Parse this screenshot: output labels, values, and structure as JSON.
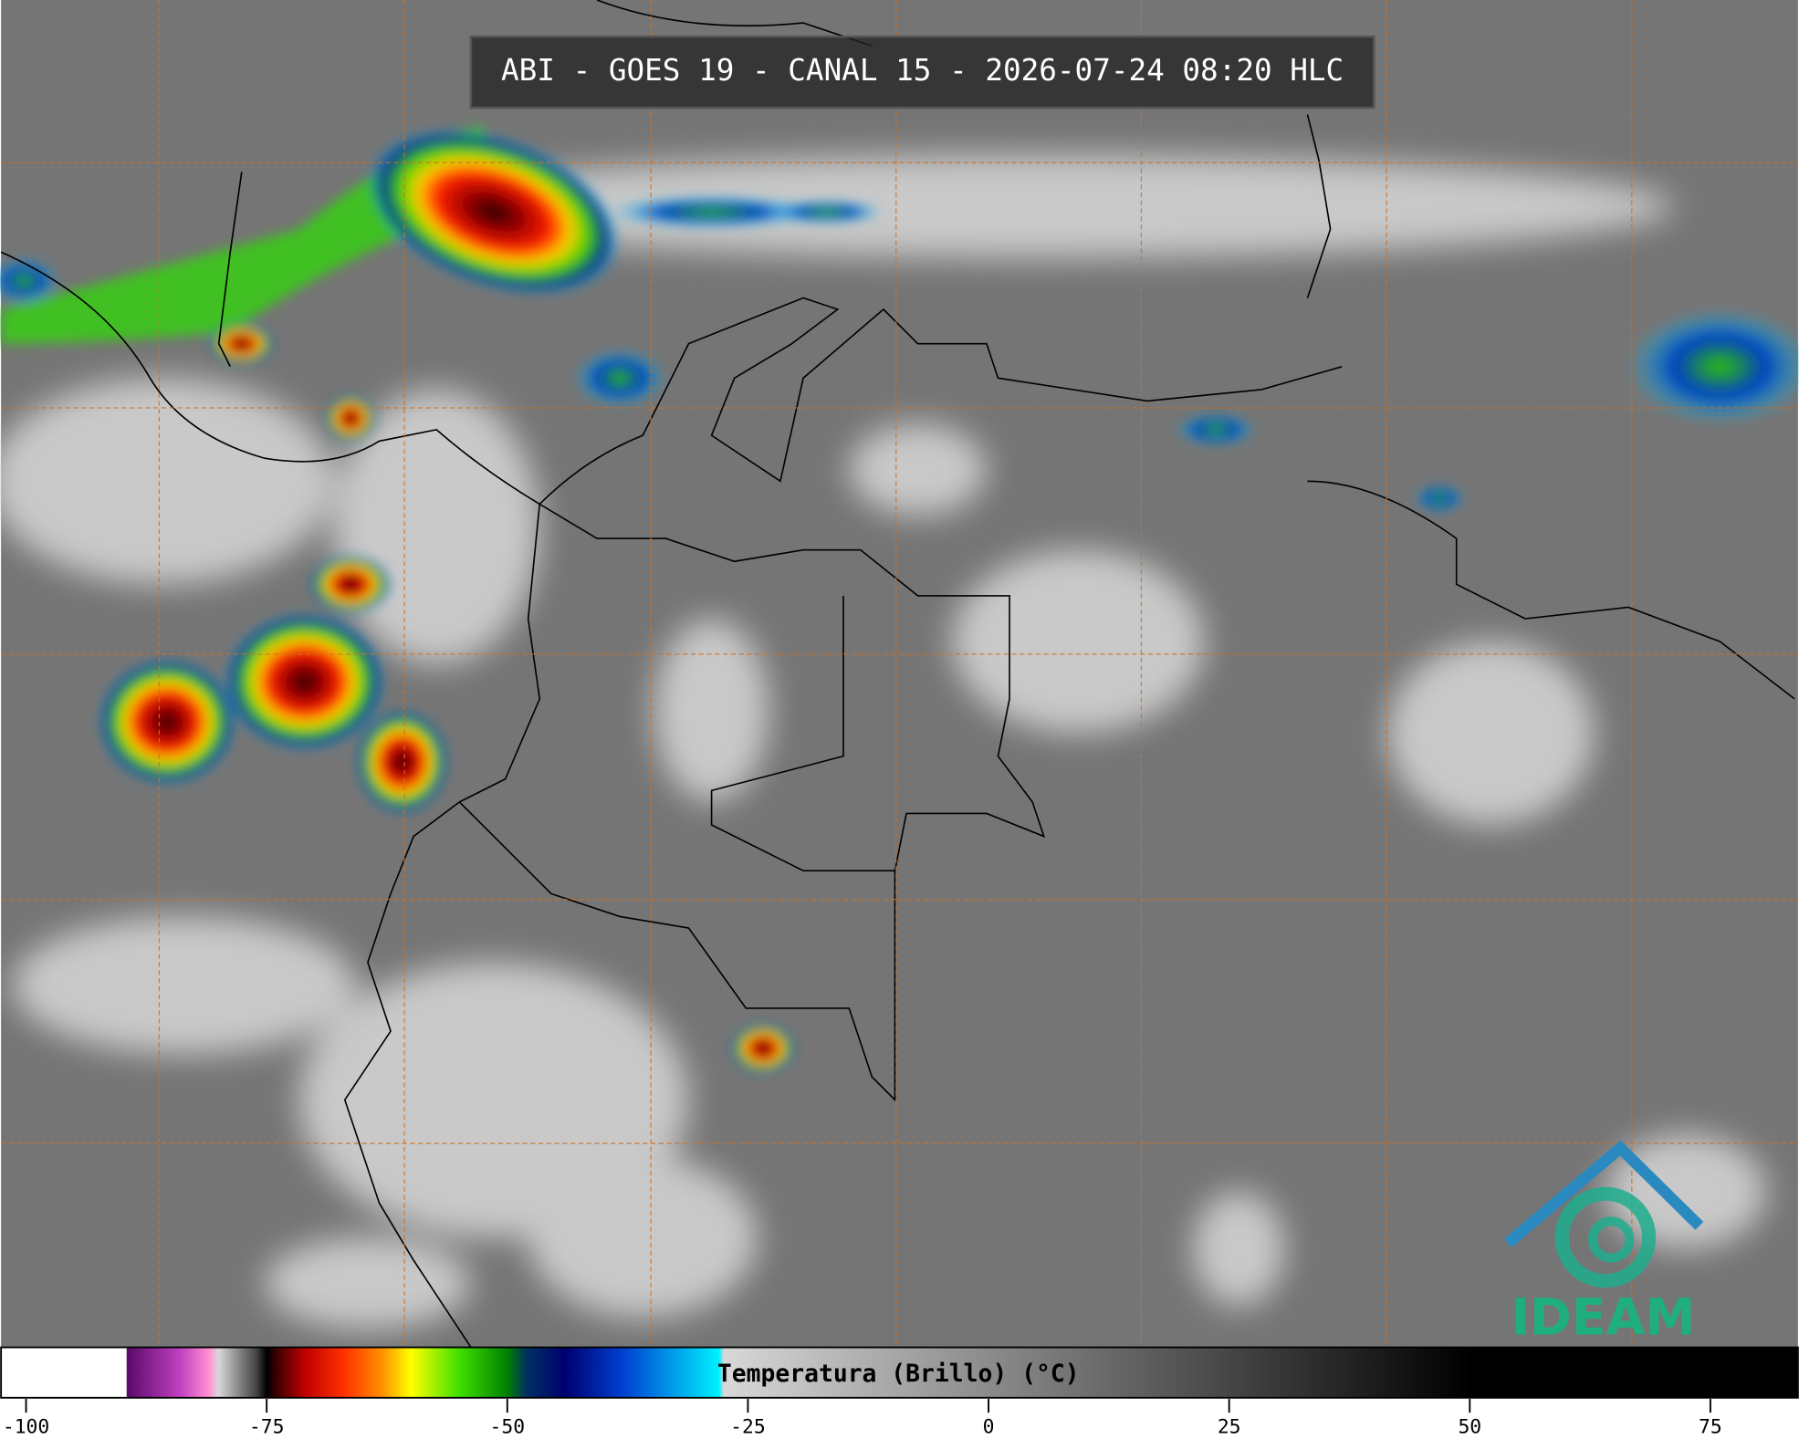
{
  "title": "ABI - GOES 19 - CANAL 15 - 2026-07-24 08:20 HLC",
  "logo": "IDEAM",
  "colorbar": {
    "label": "Temperatura (Brillo) (°C)",
    "lim": [
      -102.6,
      84.1
    ],
    "ticks": [
      -100,
      -75,
      -50,
      -25,
      0,
      25,
      50,
      75
    ],
    "stops": [
      {
        "value": -102.6,
        "color": "#ffffff"
      },
      {
        "value": -89.6,
        "color": "#ffffff"
      },
      {
        "value": -89.5,
        "color": "#5a0a6a"
      },
      {
        "value": -84,
        "color": "#c040c0"
      },
      {
        "value": -81,
        "color": "#ff90d0"
      },
      {
        "value": -80,
        "color": "#d8d8d8"
      },
      {
        "value": -76,
        "color": "#404040"
      },
      {
        "value": -75,
        "color": "#000000"
      },
      {
        "value": -74,
        "color": "#3a0000"
      },
      {
        "value": -71,
        "color": "#c00000"
      },
      {
        "value": -67,
        "color": "#ff3000"
      },
      {
        "value": -63,
        "color": "#ff9000"
      },
      {
        "value": -60,
        "color": "#ffff00"
      },
      {
        "value": -55,
        "color": "#40e000"
      },
      {
        "value": -50,
        "color": "#008000"
      },
      {
        "value": -48,
        "color": "#003060"
      },
      {
        "value": -44,
        "color": "#000070"
      },
      {
        "value": -38,
        "color": "#0040d0"
      },
      {
        "value": -28,
        "color": "#00f0ff"
      },
      {
        "value": -27.5,
        "color": "#d8d8d8"
      },
      {
        "value": 50,
        "color": "#000000"
      },
      {
        "value": 84.1,
        "color": "#000000"
      }
    ]
  }
}
